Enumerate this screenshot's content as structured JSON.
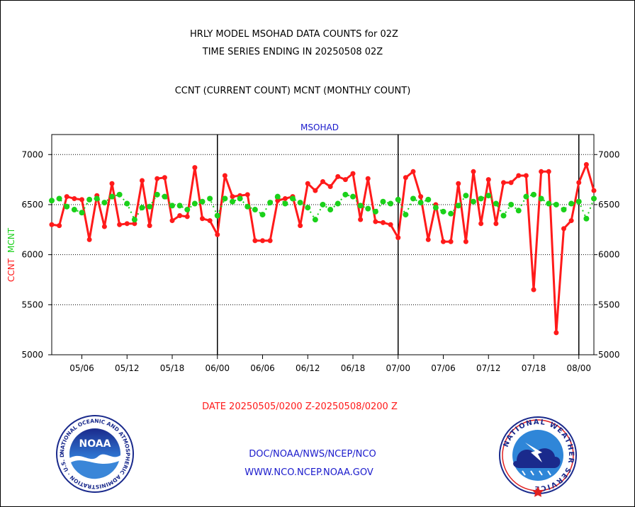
{
  "header": {
    "title_line1": "HRLY MODEL MSOHAD DATA COUNTS for 02Z",
    "title_line2": "TIME SERIES ENDING IN 20250508 02Z",
    "subtitle": "CCNT (CURRENT COUNT) MCNT (MONTHLY COUNT)"
  },
  "footer": {
    "date_range": "DATE 20250505/0200 Z-20250508/0200 Z",
    "org_line": "DOC/NOAA/NWS/NCEP/NCO",
    "url_line": "WWW.NCO.NCEP.NOAA.GOV",
    "noaa_logo_text": "NOAA",
    "noaa_ring_text": "NATIONAL OCEANIC AND ATMOSPHERIC ADMINISTRATION · U.S. DEPARTMENT OF COMMERCE",
    "nws_ring_text": "NATIONAL WEATHER SERVICE"
  },
  "colors": {
    "ccnt": "#ff1a1a",
    "mcnt": "#1ad11a",
    "label_blue": "#1a1acc"
  },
  "chart_data": {
    "type": "line",
    "title": "MSOHAD",
    "ylabel_ccnt": "CCNT",
    "ylabel_mcnt": "MCNT",
    "ylim": [
      5000,
      7200
    ],
    "yticks": [
      5000,
      5500,
      6000,
      6500,
      7000
    ],
    "ytick_labels": [
      "5000",
      "5500",
      "6000",
      "6500",
      "7000"
    ],
    "grid": true,
    "xlim": [
      0,
      72
    ],
    "xticks": [
      {
        "x": 4,
        "label": "05/06"
      },
      {
        "x": 10,
        "label": "05/12"
      },
      {
        "x": 16,
        "label": "05/18"
      },
      {
        "x": 22,
        "label": "06/00"
      },
      {
        "x": 28,
        "label": "06/06"
      },
      {
        "x": 34,
        "label": "06/12"
      },
      {
        "x": 40,
        "label": "06/18"
      },
      {
        "x": 46,
        "label": "07/00"
      },
      {
        "x": 52,
        "label": "07/06"
      },
      {
        "x": 58,
        "label": "07/12"
      },
      {
        "x": 64,
        "label": "07/18"
      },
      {
        "x": 70,
        "label": "08/00"
      }
    ],
    "day_boundaries": [
      22,
      46,
      70
    ],
    "series": [
      {
        "name": "CCNT",
        "values": [
          6300,
          6290,
          6580,
          6560,
          6550,
          6150,
          6590,
          6280,
          6710,
          6300,
          6310,
          6310,
          6740,
          6290,
          6760,
          6770,
          6340,
          6390,
          6380,
          6870,
          6360,
          6340,
          6200,
          6790,
          6580,
          6590,
          6600,
          6140,
          6140,
          6140,
          6540,
          6560,
          6580,
          6290,
          6710,
          6640,
          6730,
          6680,
          6780,
          6750,
          6810,
          6350,
          6760,
          6330,
          6320,
          6300,
          6170,
          6770,
          6830,
          6580,
          6150,
          6500,
          6130,
          6130,
          6710,
          6130,
          6830,
          6310,
          6750,
          6310,
          6720,
          6720,
          6790,
          6790,
          5650,
          6830,
          6830,
          5220,
          6260,
          6340,
          6720,
          6900,
          6640
        ]
      },
      {
        "name": "MCNT",
        "values": [
          6540,
          6560,
          6480,
          6450,
          6420,
          6550,
          6560,
          6520,
          6580,
          6600,
          6510,
          6350,
          6470,
          6480,
          6600,
          6580,
          6490,
          6490,
          6450,
          6510,
          6530,
          6560,
          6390,
          6560,
          6530,
          6560,
          6480,
          6450,
          6400,
          6520,
          6580,
          6510,
          6560,
          6520,
          6470,
          6350,
          6500,
          6450,
          6510,
          6600,
          6580,
          6490,
          6460,
          6430,
          6530,
          6510,
          6550,
          6400,
          6560,
          6520,
          6550,
          6470,
          6430,
          6410,
          6490,
          6590,
          6530,
          6560,
          6590,
          6510,
          6390,
          6500,
          6440,
          6580,
          6600,
          6560,
          6510,
          6500,
          6450,
          6510,
          6530,
          6360,
          6560
        ]
      }
    ]
  }
}
